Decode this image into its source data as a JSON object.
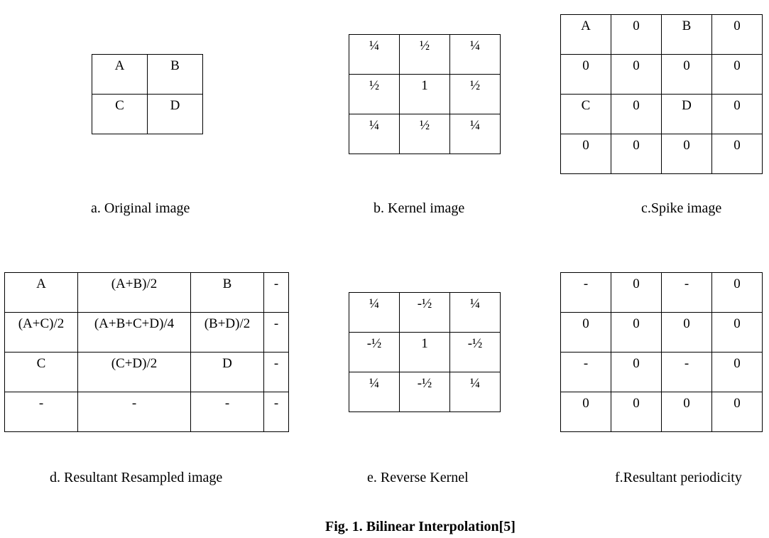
{
  "original_image": {
    "rows": [
      [
        "A",
        "B"
      ],
      [
        "C",
        "D"
      ]
    ],
    "caption": "a. Original image"
  },
  "kernel_image": {
    "rows": [
      [
        "¼",
        "½",
        "¼"
      ],
      [
        "½",
        "1",
        "½"
      ],
      [
        "¼",
        "½",
        "¼"
      ]
    ],
    "caption": "b. Kernel image"
  },
  "spike_image": {
    "rows": [
      [
        "A",
        "0",
        "B",
        "0"
      ],
      [
        "0",
        "0",
        "0",
        "0"
      ],
      [
        "C",
        "0",
        "D",
        "0"
      ],
      [
        "0",
        "0",
        "0",
        "0"
      ]
    ],
    "caption": "c.Spike image"
  },
  "resampled_image": {
    "rows": [
      [
        "A",
        "(A+B)/2",
        "B",
        "-"
      ],
      [
        "(A+C)/2",
        "(A+B+C+D)/4",
        "(B+D)/2",
        "-"
      ],
      [
        "C",
        "(C+D)/2",
        "D",
        "-"
      ],
      [
        "-",
        "-",
        "-",
        "-"
      ]
    ],
    "caption": "d. Resultant Resampled image"
  },
  "reverse_kernel": {
    "rows": [
      [
        "¼",
        "-½",
        "¼"
      ],
      [
        "-½",
        "1",
        "-½"
      ],
      [
        "¼",
        "-½",
        "¼"
      ]
    ],
    "caption": "e. Reverse Kernel"
  },
  "resultant_periodicity": {
    "rows": [
      [
        "-",
        "0",
        "-",
        "0"
      ],
      [
        "0",
        "0",
        "0",
        "0"
      ],
      [
        "-",
        "0",
        "-",
        "0"
      ],
      [
        "0",
        "0",
        "0",
        "0"
      ]
    ],
    "caption": "f.Resultant periodicity"
  },
  "figure_title": "Fig. 1.  Bilinear Interpolation[5]"
}
